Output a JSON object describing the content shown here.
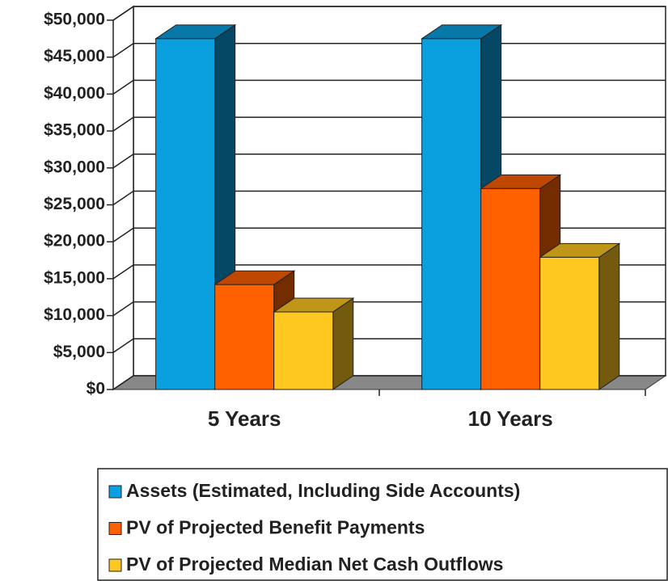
{
  "chart_data": {
    "type": "bar3d",
    "categories": [
      "5 Years",
      "10 Years"
    ],
    "series": [
      {
        "name": "Assets (Estimated, Including Side Accounts)",
        "color": "#0aa0e0",
        "values": [
          47500,
          47500
        ]
      },
      {
        "name": "PV of Projected Benefit Payments",
        "color": "#ff6000",
        "values": [
          14200,
          27200
        ]
      },
      {
        "name": "PV of Projected Median Net Cash Outflows",
        "color": "#ffc820",
        "values": [
          10500,
          17900
        ]
      }
    ],
    "ylim": [
      0,
      50000
    ],
    "yticks": [
      {
        "value": 0,
        "label": "$0"
      },
      {
        "value": 5000,
        "label": "$5,000"
      },
      {
        "value": 10000,
        "label": "$10,000"
      },
      {
        "value": 15000,
        "label": "$15,000"
      },
      {
        "value": 20000,
        "label": "$20,000"
      },
      {
        "value": 25000,
        "label": "$25,000"
      },
      {
        "value": 30000,
        "label": "$30,000"
      },
      {
        "value": 35000,
        "label": "$35,000"
      },
      {
        "value": 40000,
        "label": "$40,000"
      },
      {
        "value": 45000,
        "label": "$45,000"
      },
      {
        "value": 50000,
        "label": "$50,000"
      }
    ],
    "grid": true,
    "legend": "bottom"
  }
}
